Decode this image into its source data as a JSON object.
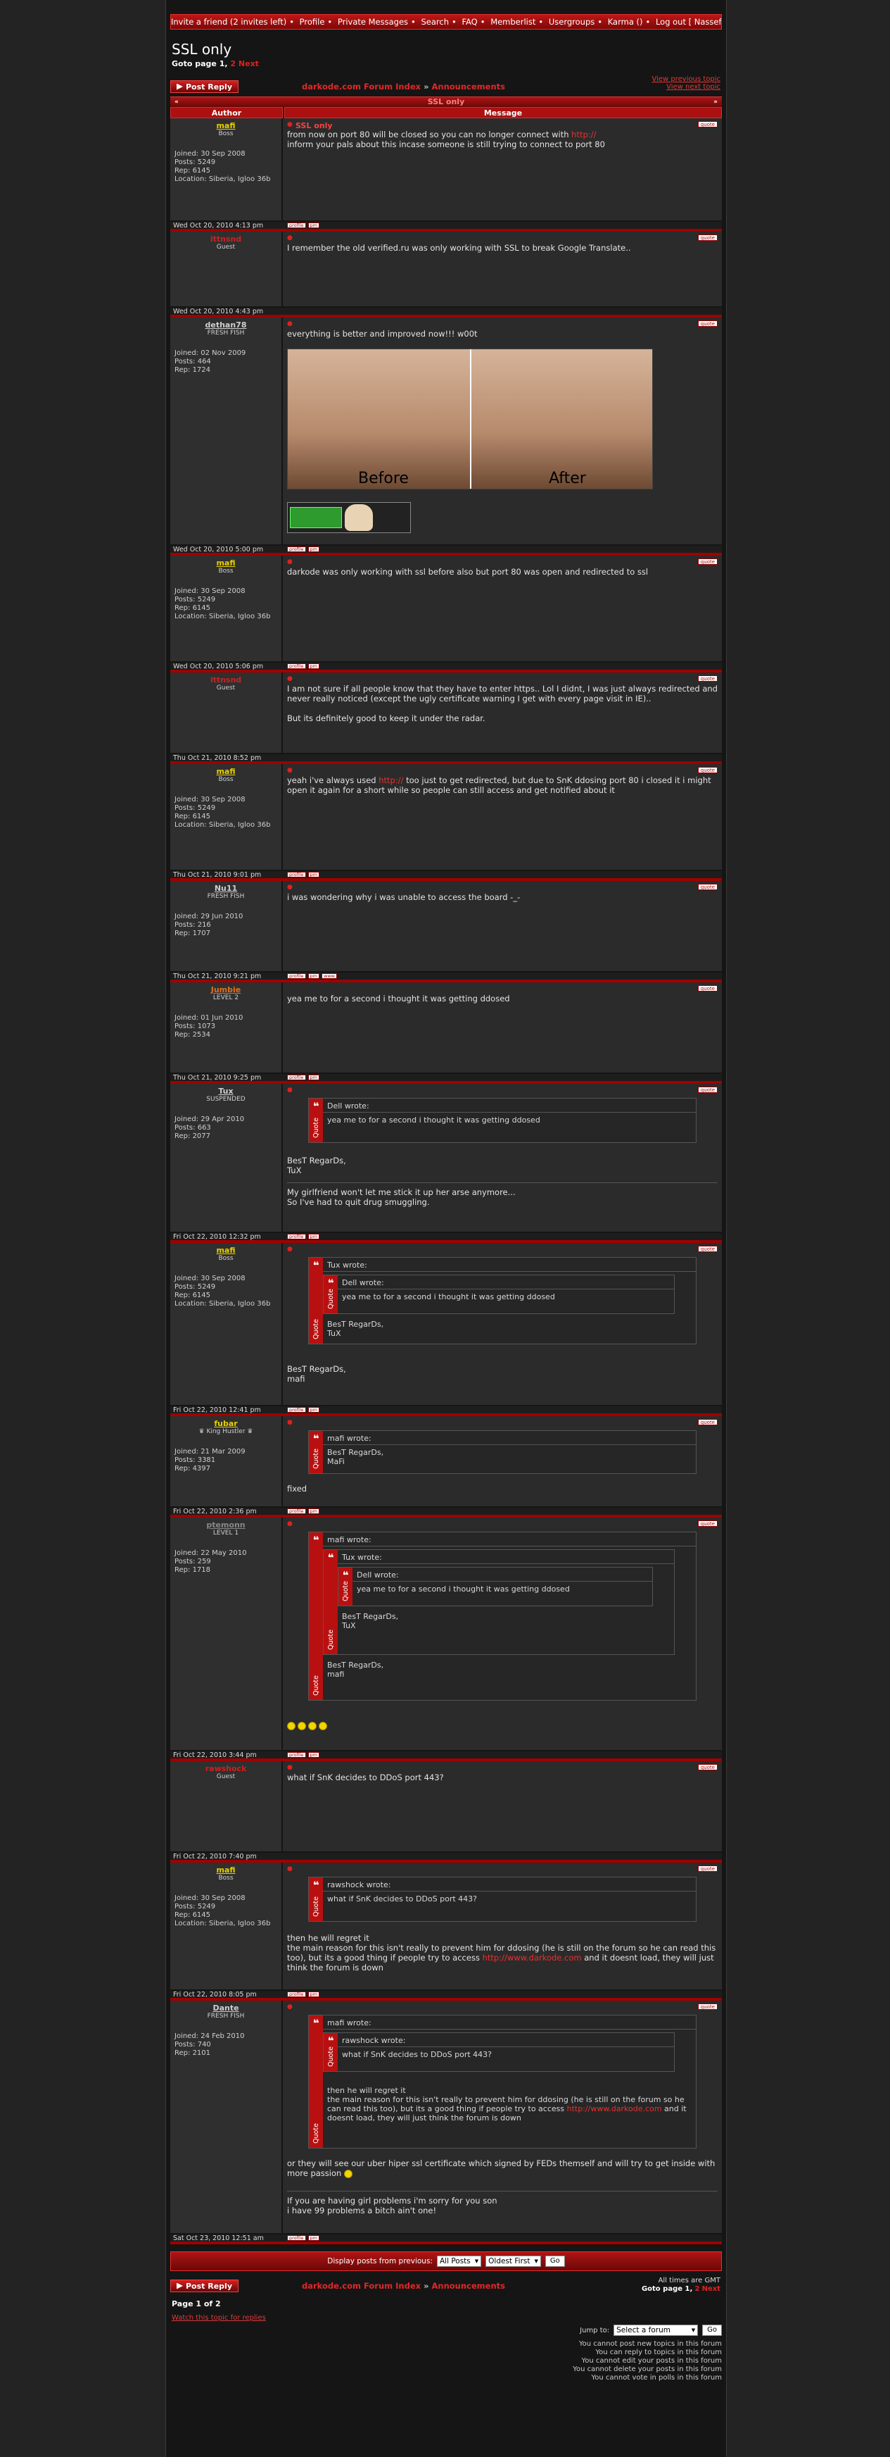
{
  "nav": {
    "items": [
      "Invite a friend (2 invites left)",
      "Profile",
      "Private Messages",
      "Search",
      "FAQ",
      "Memberlist",
      "Usergroups",
      "Karma ()",
      "Log out [ Nassef ]"
    ],
    "separator": "•"
  },
  "topic": {
    "title": "SSL only",
    "goto_label": "Goto page",
    "page_1": "1,",
    "page_2": "2",
    "next": "Next"
  },
  "actions": {
    "post_reply": "Post Reply",
    "forum_index": "darkode.com Forum Index",
    "crumb_sep": "»",
    "announcements": "Announcements",
    "view_previous": "View previous topic",
    "view_next": "View next topic"
  },
  "table": {
    "header_title": "SSL only",
    "header_left": "«",
    "header_right": "»",
    "col_author": "Author",
    "col_message": "Message"
  },
  "labels": {
    "joined": "Joined:",
    "posts": "Posts:",
    "rep": "Rep:",
    "location": "Location:",
    "quote": "Quote",
    "wrote": "wrote:",
    "quote_btn": "quote",
    "profile_btn": "profile",
    "pm_btn": "pm",
    "www_btn": "www"
  },
  "posts": [
    {
      "author": "mafi",
      "rank": "Boss",
      "author_color": "#e8d000",
      "joined": "30 Sep 2008",
      "posts": "5249",
      "rep": "6145",
      "location": "Siberia, Igloo 36b",
      "subject": "SSL only",
      "date": "Wed Oct 20, 2010 4:13 pm"
    },
    {
      "author": "ittnsnd",
      "rank": "Guest",
      "author_color": "#d02020",
      "date": "Wed Oct 20, 2010 4:43 pm"
    },
    {
      "author": "dethan78",
      "rank": "FRESH FISH",
      "author_color": "#cfcfcf",
      "joined": "02 Nov 2009",
      "posts": "464",
      "rep": "1724",
      "date": "Wed Oct 20, 2010 5:00 pm",
      "image_before": "Before",
      "image_after": "After"
    },
    {
      "author": "mafi",
      "rank": "Boss",
      "author_color": "#e8d000",
      "joined": "30 Sep 2008",
      "posts": "5249",
      "rep": "6145",
      "location": "Siberia, Igloo 36b",
      "date": "Wed Oct 20, 2010 5:06 pm"
    },
    {
      "author": "ittnsnd",
      "rank": "Guest",
      "author_color": "#d02020",
      "date": "Thu Oct 21, 2010 8:52 pm"
    },
    {
      "author": "mafi",
      "rank": "Boss",
      "author_color": "#e8d000",
      "joined": "30 Sep 2008",
      "posts": "5249",
      "rep": "6145",
      "location": "Siberia, Igloo 36b",
      "date": "Thu Oct 21, 2010 9:01 pm"
    },
    {
      "author": "Nu11",
      "rank": "FRESH FISH",
      "author_color": "#cfcfcf",
      "joined": "29 Jun 2010",
      "posts": "216",
      "rep": "1707",
      "date": "Thu Oct 21, 2010 9:21 pm"
    },
    {
      "author": "Jumbie",
      "rank": "LEVEL 2",
      "author_color": "#e07020",
      "joined": "01 Jun 2010",
      "posts": "1073",
      "rep": "2534",
      "date": "Thu Oct 21, 2010 9:25 pm"
    },
    {
      "author": "Tux",
      "rank": "SUSPENDED",
      "author_color": "#cfcfcf",
      "joined": "29 Apr 2010",
      "posts": "663",
      "rep": "2077",
      "date": "Fri Oct 22, 2010 12:32 pm",
      "quote_author": "Dell"
    },
    {
      "author": "mafi",
      "rank": "Boss",
      "author_color": "#e8d000",
      "joined": "30 Sep 2008",
      "posts": "5249",
      "rep": "6145",
      "location": "Siberia, Igloo 36b",
      "date": "Fri Oct 22, 2010 12:41 pm",
      "quote_author": "Tux",
      "inner_quote_author": "Dell"
    },
    {
      "author": "fubar",
      "rank": "King Hustler",
      "author_color": "#e8d000",
      "joined": "21 Mar 2009",
      "posts": "3381",
      "rep": "4397",
      "date": "Fri Oct 22, 2010 2:36 pm",
      "quote_author": "mafi"
    },
    {
      "author": "ptemonn",
      "rank": "LEVEL 1",
      "author_color": "#888888",
      "joined": "22 May 2010",
      "posts": "259",
      "rep": "1718",
      "date": "Fri Oct 22, 2010 3:44 pm",
      "quote_author": "mafi",
      "inner_quote_author": "Tux",
      "inner2_quote_author": "Dell"
    },
    {
      "author": "rawshock",
      "rank": "Guest",
      "author_color": "#d02020",
      "date": "Fri Oct 22, 2010 7:40 pm"
    },
    {
      "author": "mafi",
      "rank": "Boss",
      "author_color": "#e8d000",
      "joined": "30 Sep 2008",
      "posts": "5249",
      "rep": "6145",
      "location": "Siberia, Igloo 36b",
      "date": "Fri Oct 22, 2010 8:05 pm",
      "quote_author": "rawshock"
    },
    {
      "author": "Dante",
      "rank": "FRESH FISH",
      "author_color": "#cfcfcf",
      "joined": "24 Feb 2010",
      "posts": "740",
      "rep": "2101",
      "date": "Sat Oct 23, 2010 12:51 am",
      "quote_author": "mafi",
      "inner_quote_author": "rawshock"
    }
  ],
  "texts": {
    "p1_l1": "from now on port 80 will be closed so you can no longer connect with ",
    "p1_link": "http://",
    "p1_l2": "inform your pals about this incase someone is still trying to connect to port 80",
    "p2": "I remember the old verified.ru was only working with SSL to break Google Translate..",
    "p3": "everything is better and improved now!!! w00t",
    "p4": "darkode was only working with ssl before also but port 80 was open and redirected to ssl",
    "p5_a": "I am not sure if all people know that they have to enter https.. Lol I didnt, I was just always redirected and never really noticed (except the ugly certificate warning I get with every page visit in IE)..",
    "p5_b": "But its definitely good to keep it under the radar.",
    "p6_a": "yeah i've always used ",
    "p6_link": "http://",
    "p6_b": " too just to get redirected, but due to SnK ddosing port 80 i closed it i might open it again for a short while so people can still access and get notified about it",
    "p7": "i was wondering why i was unable to access the board -_-",
    "p8": "yea me to for a second i thought it was getting ddosed",
    "sig_bestregards": "BesT RegarDs,",
    "sig_tux": "TuX",
    "sig_mafi": "mafi",
    "p9_sig1": "My girlfriend won't let me stick it up her arse anymore...",
    "p9_sig2": "So I've had to quit drug smuggling.",
    "p10_quote_mafi": "BesT RegarDs,",
    "p10_quote_mafi2": "MaFi",
    "p11": "fixed",
    "p13": "what if SnK decides to DDoS port 443?",
    "p14_a": "then he will regret it",
    "p14_b": "the main reason for this isn't really to prevent him for ddosing (he is still on the forum so he can read this too), but its a good thing if people try to access ",
    "p14_link": "http://www.darkode.com",
    "p14_c": " and it doesnt load, they will just think the forum is down",
    "p15_a": "or they will see our uber hiper ssl certificate which signed by FEDs themself and will try to get inside with more passion",
    "p15_b": "If you are having girl problems i'm sorry for you son",
    "p15_c": "i have 99 problems a bitch ain't one!"
  },
  "bottom": {
    "display_label": "Display posts from previous:",
    "all_posts": "All Posts",
    "oldest_first": "Oldest First",
    "go": "Go",
    "times": "All times are GMT",
    "page_of": "Page 1 of 2",
    "watch": "Watch this topic for replies",
    "jump_to": "Jump to:",
    "select_forum": "Select a forum",
    "perm1": "You cannot post new topics in this forum",
    "perm2": "You can reply to topics in this forum",
    "perm3": "You cannot edit your posts in this forum",
    "perm4": "You cannot delete your posts in this forum",
    "perm5": "You cannot vote in polls in this forum"
  }
}
